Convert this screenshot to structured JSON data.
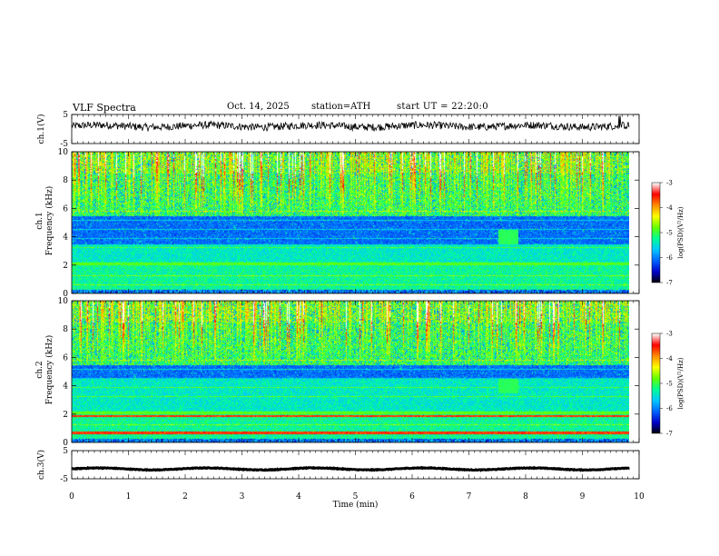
{
  "header": {
    "title": "VLF Spectra",
    "date": "Oct. 14, 2025",
    "station": "station=ATH",
    "start": "start UT =  22:20:0"
  },
  "chart_data": [
    {
      "type": "line",
      "panel": "ch1-waveform",
      "ylabel": "ch.1(V)",
      "ylim": [
        -5,
        5
      ],
      "yticks": [
        "5",
        "-5"
      ],
      "x_range_min": [
        0,
        9.83
      ],
      "description_values": "noisy voltage trace oscillating around ~ +1 V with spikes near 9.7 min",
      "approx_level_V": 1.0
    },
    {
      "type": "heatmap",
      "panel": "ch1-spectrogram",
      "ylabel": "ch.1\nFrequency (kHz)",
      "ylabel_line1": "ch.1",
      "ylabel_line2": "Frequency (kHz)",
      "ylim": [
        0,
        10
      ],
      "yticks": [
        "0",
        "2",
        "4",
        "6",
        "8",
        "10"
      ],
      "x_range_min": [
        0,
        9.83
      ],
      "colorbar": {
        "label": "log(PSD)(V²/Hz)",
        "range": [
          -7,
          -3
        ],
        "ticks": [
          "-3",
          "-4",
          "-5",
          "-6",
          "-7"
        ]
      },
      "bright_band_kHz": [
        2.0,
        2.2
      ],
      "dark_band_kHz": [
        3.5,
        5.5
      ],
      "feature_time_min": 7.7
    },
    {
      "type": "heatmap",
      "panel": "ch2-spectrogram",
      "ylabel_line1": "ch.2",
      "ylabel_line2": "Frequency (kHz)",
      "ylim": [
        0,
        10
      ],
      "yticks": [
        "0",
        "2",
        "4",
        "6",
        "8",
        "10"
      ],
      "x_range_min": [
        0,
        9.83
      ],
      "colorbar": {
        "label": "log(PSD)(V²/Hz)",
        "range": [
          -7,
          -3
        ],
        "ticks": [
          "-3",
          "-4",
          "-5",
          "-6",
          "-7"
        ]
      },
      "bright_band_kHz": [
        2.0,
        2.2
      ],
      "dark_band_kHz": [
        4.5,
        5.5
      ],
      "feature_time_min": 7.7
    },
    {
      "type": "line",
      "panel": "ch3-waveform",
      "ylabel": "ch.3(V)",
      "ylim": [
        -5,
        5
      ],
      "yticks": [
        "5",
        "-5"
      ],
      "x_range_min": [
        0,
        9.83
      ],
      "approx_level_V": -1.5
    }
  ],
  "xaxis": {
    "label": "Time (min)",
    "ticks": [
      "0",
      "1",
      "2",
      "3",
      "4",
      "5",
      "6",
      "7",
      "8",
      "9",
      "10"
    ],
    "range": [
      0,
      10
    ]
  },
  "colors": {
    "line": "#000000",
    "colormap": [
      "#000000",
      "#0000c8",
      "#0064ff",
      "#00c8ff",
      "#00ff96",
      "#64ff00",
      "#ffff00",
      "#ff8c00",
      "#ff0000",
      "#ffffff"
    ]
  }
}
